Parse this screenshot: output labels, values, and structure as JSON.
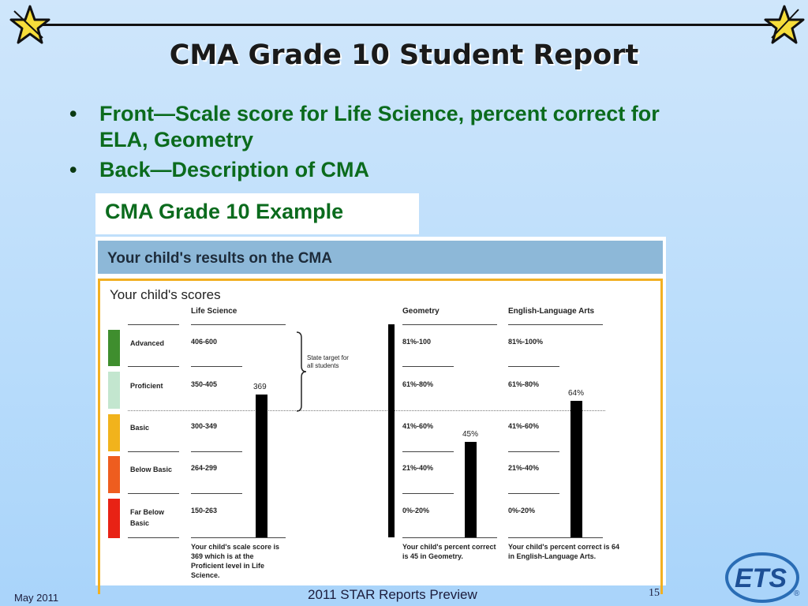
{
  "slide": {
    "title": "CMA Grade 10 Student Report",
    "bullets": [
      "Front—Scale score for Life Science, percent correct for ELA, Geometry",
      "Back—Description of CMA"
    ],
    "bullet_symbol": "•",
    "example_label": "CMA Grade 10 Example",
    "footer_left": "May 2011",
    "footer_center": "2011 STAR Reports Preview",
    "page_number": "15",
    "logo_text": "ETS",
    "logo_mark": "®"
  },
  "report": {
    "header": "Your child's results on the CMA",
    "scores_title": "Your child's scores",
    "levels": [
      {
        "name": "Advanced",
        "name2": "",
        "color": "#3f8e2e"
      },
      {
        "name": "Proficient",
        "name2": "",
        "color": "#c3e6cf"
      },
      {
        "name": "Basic",
        "name2": "",
        "color": "#f1b31c"
      },
      {
        "name": "Below Basic",
        "name2": "",
        "color": "#ee5d1f"
      },
      {
        "name": "Far Below",
        "name2": "Basic",
        "color": "#e82215"
      }
    ],
    "state_target": "State target for all students",
    "life_science": {
      "heading": "Life Science",
      "ranges": [
        "406-600",
        "350-405",
        "300-349",
        "264-299",
        "150-263"
      ],
      "score": "369",
      "caption": "Your child's scale score is 369 which is at the Proficient level in Life Science."
    },
    "geometry": {
      "heading": "Geometry",
      "ranges": [
        "81%-100",
        "61%-80%",
        "41%-60%",
        "21%-40%",
        "0%-20%"
      ],
      "score": "45%",
      "caption": "Your child's percent correct is 45 in Geometry."
    },
    "ela": {
      "heading": "English-Language Arts",
      "ranges": [
        "81%-100%",
        "61%-80%",
        "41%-60%",
        "21%-40%",
        "0%-20%"
      ],
      "score": "64%",
      "caption": "Your child's percent correct is 64 in English-Language Arts."
    }
  }
}
